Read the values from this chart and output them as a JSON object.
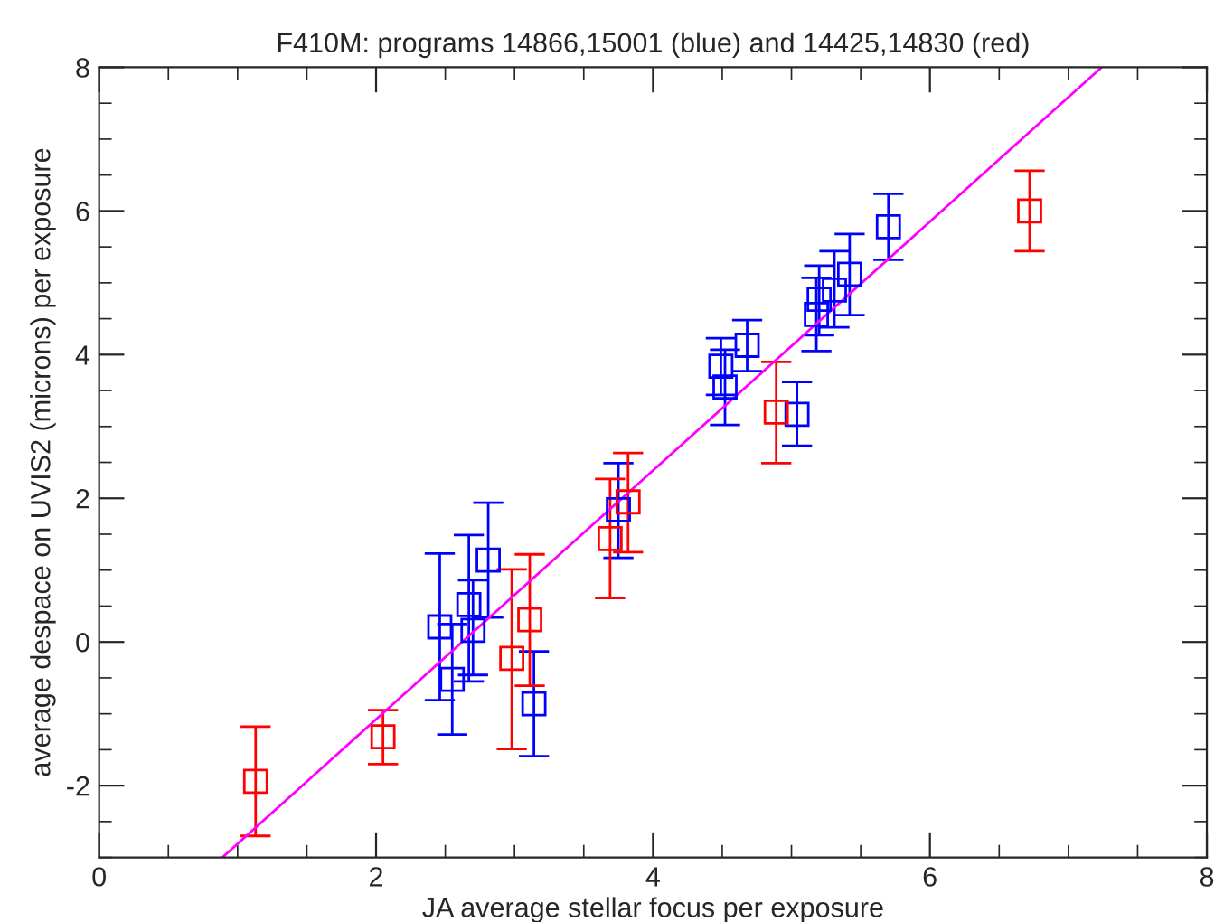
{
  "chart_data": {
    "type": "scatter",
    "title": "F410M: programs 14866,15001 (blue) and 14425,14830 (red)",
    "xlabel": "JA average stellar focus per exposure",
    "ylabel": "average despace on UVIS2 (microns) per exposure",
    "xlim": [
      0,
      8
    ],
    "xticks": [
      0,
      2,
      4,
      6,
      8
    ],
    "ylim": [
      -3,
      8
    ],
    "yticks": [
      -2,
      0,
      2,
      4,
      6,
      8
    ],
    "grid": false,
    "marker": "square",
    "series": [
      {
        "color": "#0000ff",
        "x": [
          2.46,
          2.55,
          2.67,
          2.7,
          2.81,
          3.14,
          3.75,
          4.49,
          4.52,
          4.68,
          5.04,
          5.18,
          5.2,
          5.31,
          5.42,
          5.7
        ],
        "values": [
          0.21,
          -0.52,
          0.52,
          0.16,
          1.14,
          -0.86,
          1.84,
          3.84,
          3.55,
          4.13,
          3.17,
          4.56,
          4.77,
          4.9,
          5.12,
          5.78
        ],
        "errors": [
          [
            -0.81,
            1.23
          ],
          [
            -1.29,
            0.25
          ],
          [
            -0.55,
            1.49
          ],
          [
            -0.46,
            0.86
          ],
          [
            0.34,
            1.94
          ],
          [
            -1.59,
            -0.13
          ],
          [
            1.17,
            2.49
          ],
          [
            3.44,
            4.23
          ],
          [
            3.02,
            4.07
          ],
          [
            3.77,
            4.48
          ],
          [
            2.73,
            3.62
          ],
          [
            4.05,
            5.07
          ],
          [
            4.27,
            5.24
          ],
          [
            4.38,
            5.44
          ],
          [
            4.55,
            5.68
          ],
          [
            5.32,
            6.24
          ]
        ]
      },
      {
        "color": "#ff0000",
        "x": [
          1.13,
          2.05,
          2.98,
          3.11,
          3.69,
          3.82,
          4.89,
          6.72
        ],
        "values": [
          -1.94,
          -1.32,
          -0.23,
          0.31,
          1.44,
          1.95,
          3.2,
          6.0
        ],
        "errors": [
          [
            -2.7,
            -1.18
          ],
          [
            -1.7,
            -0.95
          ],
          [
            -1.49,
            1.01
          ],
          [
            -0.61,
            1.22
          ],
          [
            0.61,
            2.27
          ],
          [
            1.25,
            2.63
          ],
          [
            2.49,
            3.9
          ],
          [
            5.44,
            6.56
          ]
        ]
      },
      {
        "type": "line",
        "color": "#ff00ff",
        "marker": "none",
        "line_style": "solid",
        "x": [
          0.89,
          7.24
        ],
        "values": [
          -3,
          8
        ]
      }
    ]
  }
}
